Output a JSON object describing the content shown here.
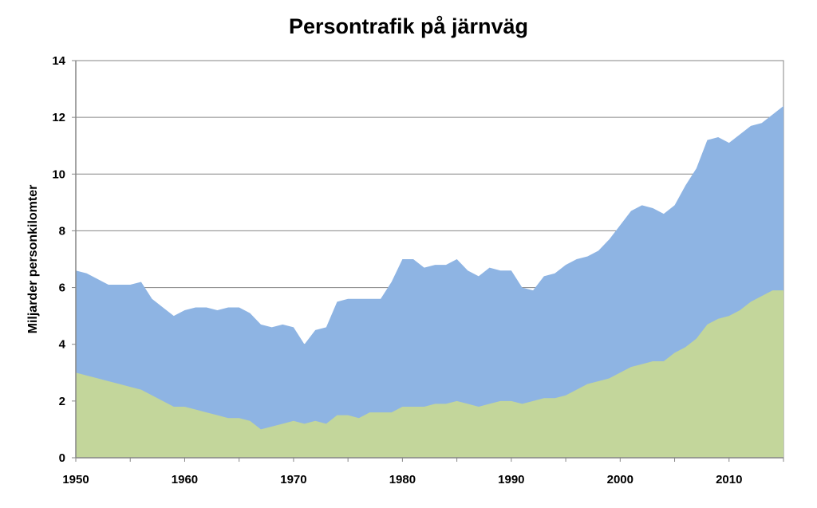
{
  "chart_data": {
    "type": "area",
    "title": "Persontrafik på järnväg",
    "xlabel": "",
    "ylabel": "Miljarder personkilomter",
    "xlim": [
      1950,
      2015
    ],
    "ylim": [
      0,
      14
    ],
    "x_ticks": [
      "1950",
      "1960",
      "1970",
      "1980",
      "1990",
      "2000",
      "2010"
    ],
    "y_ticks": [
      "0",
      "2",
      "4",
      "6",
      "8",
      "10",
      "12",
      "14"
    ],
    "grid": true,
    "stacked": false,
    "x": [
      1950,
      1951,
      1952,
      1953,
      1954,
      1955,
      1956,
      1957,
      1958,
      1959,
      1960,
      1961,
      1962,
      1963,
      1964,
      1965,
      1966,
      1967,
      1968,
      1969,
      1970,
      1971,
      1972,
      1973,
      1974,
      1975,
      1976,
      1977,
      1978,
      1979,
      1980,
      1981,
      1982,
      1983,
      1984,
      1985,
      1986,
      1987,
      1988,
      1989,
      1990,
      1991,
      1992,
      1993,
      1994,
      1995,
      1996,
      1997,
      1998,
      1999,
      2000,
      2001,
      2002,
      2003,
      2004,
      2005,
      2006,
      2007,
      2008,
      2009,
      2010,
      2011,
      2012,
      2013,
      2014,
      2015
    ],
    "series": [
      {
        "color": "#8EB4E3",
        "values": [
          6.6,
          6.5,
          6.3,
          6.1,
          6.1,
          6.1,
          6.2,
          5.6,
          5.3,
          5.0,
          5.2,
          5.3,
          5.3,
          5.2,
          5.3,
          5.3,
          5.1,
          4.7,
          4.6,
          4.7,
          4.6,
          4.0,
          4.5,
          4.6,
          5.5,
          5.6,
          5.6,
          5.6,
          5.6,
          6.2,
          7.0,
          7.0,
          6.7,
          6.8,
          6.8,
          7.0,
          6.6,
          6.4,
          6.7,
          6.6,
          6.6,
          6.0,
          5.9,
          6.4,
          6.5,
          6.8,
          7.0,
          7.1,
          7.3,
          7.7,
          8.2,
          8.7,
          8.9,
          8.8,
          8.6,
          8.9,
          9.6,
          10.2,
          11.2,
          11.3,
          11.1,
          11.4,
          11.7,
          11.8,
          12.1,
          12.4
        ]
      },
      {
        "color": "#C3D69B",
        "values": [
          3.0,
          2.9,
          2.8,
          2.7,
          2.6,
          2.5,
          2.4,
          2.2,
          2.0,
          1.8,
          1.8,
          1.7,
          1.6,
          1.5,
          1.4,
          1.4,
          1.3,
          1.0,
          1.1,
          1.2,
          1.3,
          1.2,
          1.3,
          1.2,
          1.5,
          1.5,
          1.4,
          1.6,
          1.6,
          1.6,
          1.8,
          1.8,
          1.8,
          1.9,
          1.9,
          2.0,
          1.9,
          1.8,
          1.9,
          2.0,
          2.0,
          1.9,
          2.0,
          2.1,
          2.1,
          2.2,
          2.4,
          2.6,
          2.7,
          2.8,
          3.0,
          3.2,
          3.3,
          3.4,
          3.4,
          3.7,
          3.9,
          4.2,
          4.7,
          4.9,
          5.0,
          5.2,
          5.5,
          5.7,
          5.9,
          5.9
        ]
      }
    ]
  }
}
